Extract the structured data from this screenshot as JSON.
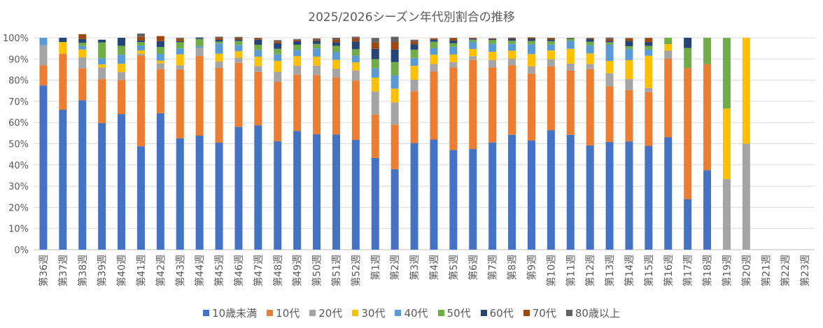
{
  "chart_data": {
    "type": "bar",
    "stacked": true,
    "title": "2025/2026シーズン年代別割合の推移",
    "categories": [
      "第36週",
      "第37週",
      "第38週",
      "第39週",
      "第40週",
      "第41週",
      "第42週",
      "第43週",
      "第44週",
      "第45週",
      "第46週",
      "第47週",
      "第48週",
      "第49週",
      "第50週",
      "第51週",
      "第52週",
      "第1週",
      "第2週",
      "第3週",
      "第4週",
      "第5週",
      "第6週",
      "第7週",
      "第8週",
      "第9週",
      "第10週",
      "第11週",
      "第12週",
      "第13週",
      "第14週",
      "第15週",
      "第16週",
      "第17週",
      "第18週",
      "第19週",
      "第20週",
      "第21週",
      "第22週",
      "第23週"
    ],
    "yticks": [
      "0%",
      "10%",
      "20%",
      "30%",
      "40%",
      "50%",
      "60%",
      "70%",
      "80%",
      "90%",
      "100%"
    ],
    "ylim": [
      0,
      100
    ],
    "grid": true,
    "legend_position": "bottom",
    "series": [
      {
        "name": "10歳未満",
        "color": "#4472C4",
        "values": [
          77.5,
          66,
          70.5,
          59.8,
          64,
          48.8,
          64.4,
          52.5,
          53.8,
          50.5,
          58,
          58.7,
          51.2,
          56,
          54.5,
          54.4,
          51.8,
          43.3,
          38,
          50.3,
          52,
          47,
          47.5,
          50.6,
          54.2,
          51.5,
          56.4,
          54.2,
          49.2,
          50.9,
          51.1,
          49,
          53.1,
          23.8,
          37.5,
          0,
          0,
          0,
          0,
          0
        ]
      },
      {
        "name": "10代",
        "color": "#ED7D31",
        "values": [
          9.5,
          26.4,
          15,
          20.7,
          16,
          42.8,
          20.8,
          32.5,
          37.6,
          35.3,
          30.2,
          25.2,
          28,
          26.6,
          27.9,
          26.8,
          28,
          20.5,
          21,
          24.5,
          32,
          39,
          42,
          35.4,
          32.8,
          31.6,
          30.1,
          30.3,
          36,
          26.2,
          24.2,
          25.3,
          37,
          61.9,
          50,
          0,
          0,
          0,
          0,
          0
        ]
      },
      {
        "name": "20代",
        "color": "#A5A5A5",
        "values": [
          9.5,
          0,
          5.3,
          5.5,
          3.8,
          0.8,
          2.8,
          2,
          3.8,
          3,
          2.4,
          2.8,
          4.8,
          4.2,
          4.5,
          4.1,
          4.7,
          10.8,
          10.5,
          5.4,
          3.6,
          2.5,
          1.8,
          3.5,
          3.1,
          3.4,
          3.4,
          3.3,
          2.4,
          6.1,
          5.2,
          2,
          3.8,
          0,
          0,
          33.3,
          50,
          0,
          0,
          0
        ]
      },
      {
        "name": "30代",
        "color": "#FFC000",
        "values": [
          0,
          5.6,
          3.7,
          1.4,
          4,
          1.6,
          1.2,
          5.2,
          0,
          3.7,
          3.1,
          4.4,
          5.1,
          4.5,
          4.2,
          4.3,
          3.9,
          6.6,
          6.5,
          6.6,
          4.4,
          3.6,
          3.4,
          3.9,
          3.8,
          5.8,
          4.1,
          7,
          5,
          5.9,
          8.9,
          15.2,
          3.1,
          0,
          0,
          33.3,
          50,
          0,
          0,
          0
        ]
      },
      {
        "name": "40代",
        "color": "#5B9BD5",
        "values": [
          3.5,
          0,
          1.6,
          3,
          4.2,
          2.4,
          3.2,
          2.8,
          0.8,
          4.8,
          2.9,
          3.1,
          3.1,
          3,
          3.9,
          3.8,
          3.2,
          4.4,
          6.3,
          3.7,
          3.2,
          3.7,
          3.5,
          3.7,
          3.2,
          4.6,
          2.8,
          3.7,
          3.9,
          7.6,
          5.3,
          2.9,
          0,
          0,
          0,
          0,
          0,
          0,
          0,
          0
        ]
      },
      {
        "name": "50代",
        "color": "#70AD47",
        "values": [
          0,
          0,
          1.5,
          7.4,
          4.2,
          1.6,
          3.2,
          2.9,
          3.4,
          0.9,
          1.9,
          2.5,
          2.6,
          2.4,
          2.1,
          2.8,
          3,
          4.3,
          6.2,
          3.9,
          2.9,
          1.6,
          0.9,
          1.8,
          1.5,
          1.6,
          1.6,
          1,
          1.6,
          1.2,
          1.3,
          1.8,
          3,
          9.5,
          12.5,
          33.3,
          0,
          0,
          0,
          0
        ]
      },
      {
        "name": "60代",
        "color": "#264478",
        "values": [
          0,
          2,
          1.8,
          1.3,
          3.8,
          0.8,
          2.8,
          0.5,
          0.5,
          0.8,
          0.7,
          2.4,
          2.6,
          1.7,
          1.5,
          1.7,
          3.7,
          4.9,
          6,
          2.6,
          0.9,
          1.3,
          0.5,
          0.5,
          0.9,
          1,
          0.8,
          0.2,
          1.3,
          0.6,
          2.5,
          1.8,
          0,
          4.8,
          0,
          0,
          0,
          0,
          0,
          0
        ]
      },
      {
        "name": "70代",
        "color": "#9E480E",
        "values": [
          0,
          0,
          2.3,
          0,
          0,
          1.6,
          2.4,
          1.2,
          0,
          0.9,
          0.8,
          0.6,
          0.9,
          0.7,
          0.6,
          1.4,
          1.6,
          3,
          3.5,
          1.4,
          0.6,
          1.1,
          0.4,
          0.3,
          0.3,
          0.5,
          0.7,
          0.1,
          0.4,
          0.9,
          1.2,
          1.8,
          0,
          0,
          0,
          0,
          0,
          0,
          0,
          0
        ]
      },
      {
        "name": "80歳以上",
        "color": "#636363",
        "values": [
          0,
          0,
          0,
          0,
          0,
          1.6,
          0,
          0.4,
          0.3,
          0.6,
          0.4,
          0.3,
          0.6,
          0.3,
          0.5,
          0.7,
          0.6,
          2.1,
          2.5,
          0.7,
          0.2,
          0.2,
          0,
          0.1,
          0.3,
          0.2,
          0.1,
          0.2,
          0.2,
          0.7,
          0.2,
          0.2,
          0,
          0,
          0,
          0,
          0,
          0,
          0,
          0
        ]
      }
    ]
  }
}
